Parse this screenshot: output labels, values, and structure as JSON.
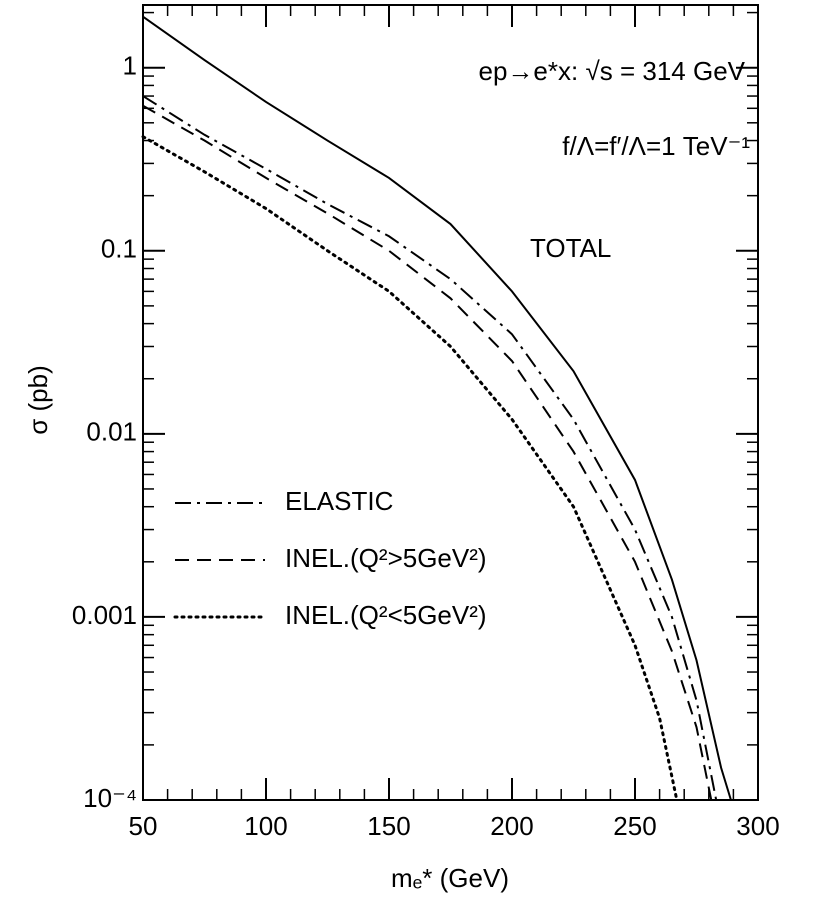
{
  "chart_data": {
    "type": "line",
    "x_label": "mₑ* (GeV)",
    "y_label": "σ (pb)",
    "annotations": [
      "ep→e*x: √s = 314 GeV",
      "f/Λ=f′/Λ=1 TeV⁻¹"
    ],
    "log_y": true,
    "legend": "lower left",
    "xlim": [
      50,
      300
    ],
    "ylim": [
      0.0001,
      2.2
    ],
    "xticks": [
      50,
      100,
      150,
      200,
      250,
      300
    ],
    "yticks": [
      {
        "value": 0.0001,
        "label": "10⁻⁴"
      },
      0.001,
      0.01,
      0.1,
      1
    ],
    "series": [
      {
        "name": "TOTAL",
        "color": "#000000",
        "dash": "solid",
        "x": [
          50,
          75,
          100,
          125,
          150,
          175,
          200,
          225,
          250,
          265,
          275,
          285,
          289
        ],
        "values": [
          1.9,
          1.1,
          0.65,
          0.4,
          0.25,
          0.14,
          0.06,
          0.022,
          0.0056,
          0.0016,
          0.00058,
          0.00015,
          0.0001
        ]
      },
      {
        "name": "ELASTIC",
        "color": "#000000",
        "dash": "dashdot",
        "x": [
          50,
          75,
          100,
          125,
          150,
          175,
          200,
          225,
          250,
          265,
          275,
          283
        ],
        "values": [
          0.7,
          0.43,
          0.28,
          0.18,
          0.12,
          0.07,
          0.035,
          0.012,
          0.003,
          0.001,
          0.00035,
          0.0001
        ]
      },
      {
        "name": "INEL.(Q²>5GeV²)",
        "color": "#000000",
        "dash": "dashed",
        "x": [
          50,
          75,
          100,
          125,
          150,
          175,
          200,
          225,
          250,
          265,
          275,
          281
        ],
        "values": [
          0.62,
          0.4,
          0.25,
          0.16,
          0.1,
          0.055,
          0.025,
          0.008,
          0.002,
          0.00065,
          0.00025,
          0.0001
        ]
      },
      {
        "name": "INEL.(Q²<5GeV²)",
        "color": "#000000",
        "dash": "dotted",
        "x": [
          50,
          75,
          100,
          125,
          150,
          175,
          200,
          225,
          250,
          260,
          267
        ],
        "values": [
          0.42,
          0.27,
          0.17,
          0.1,
          0.06,
          0.03,
          0.012,
          0.004,
          0.0007,
          0.00028,
          0.0001
        ]
      }
    ]
  }
}
